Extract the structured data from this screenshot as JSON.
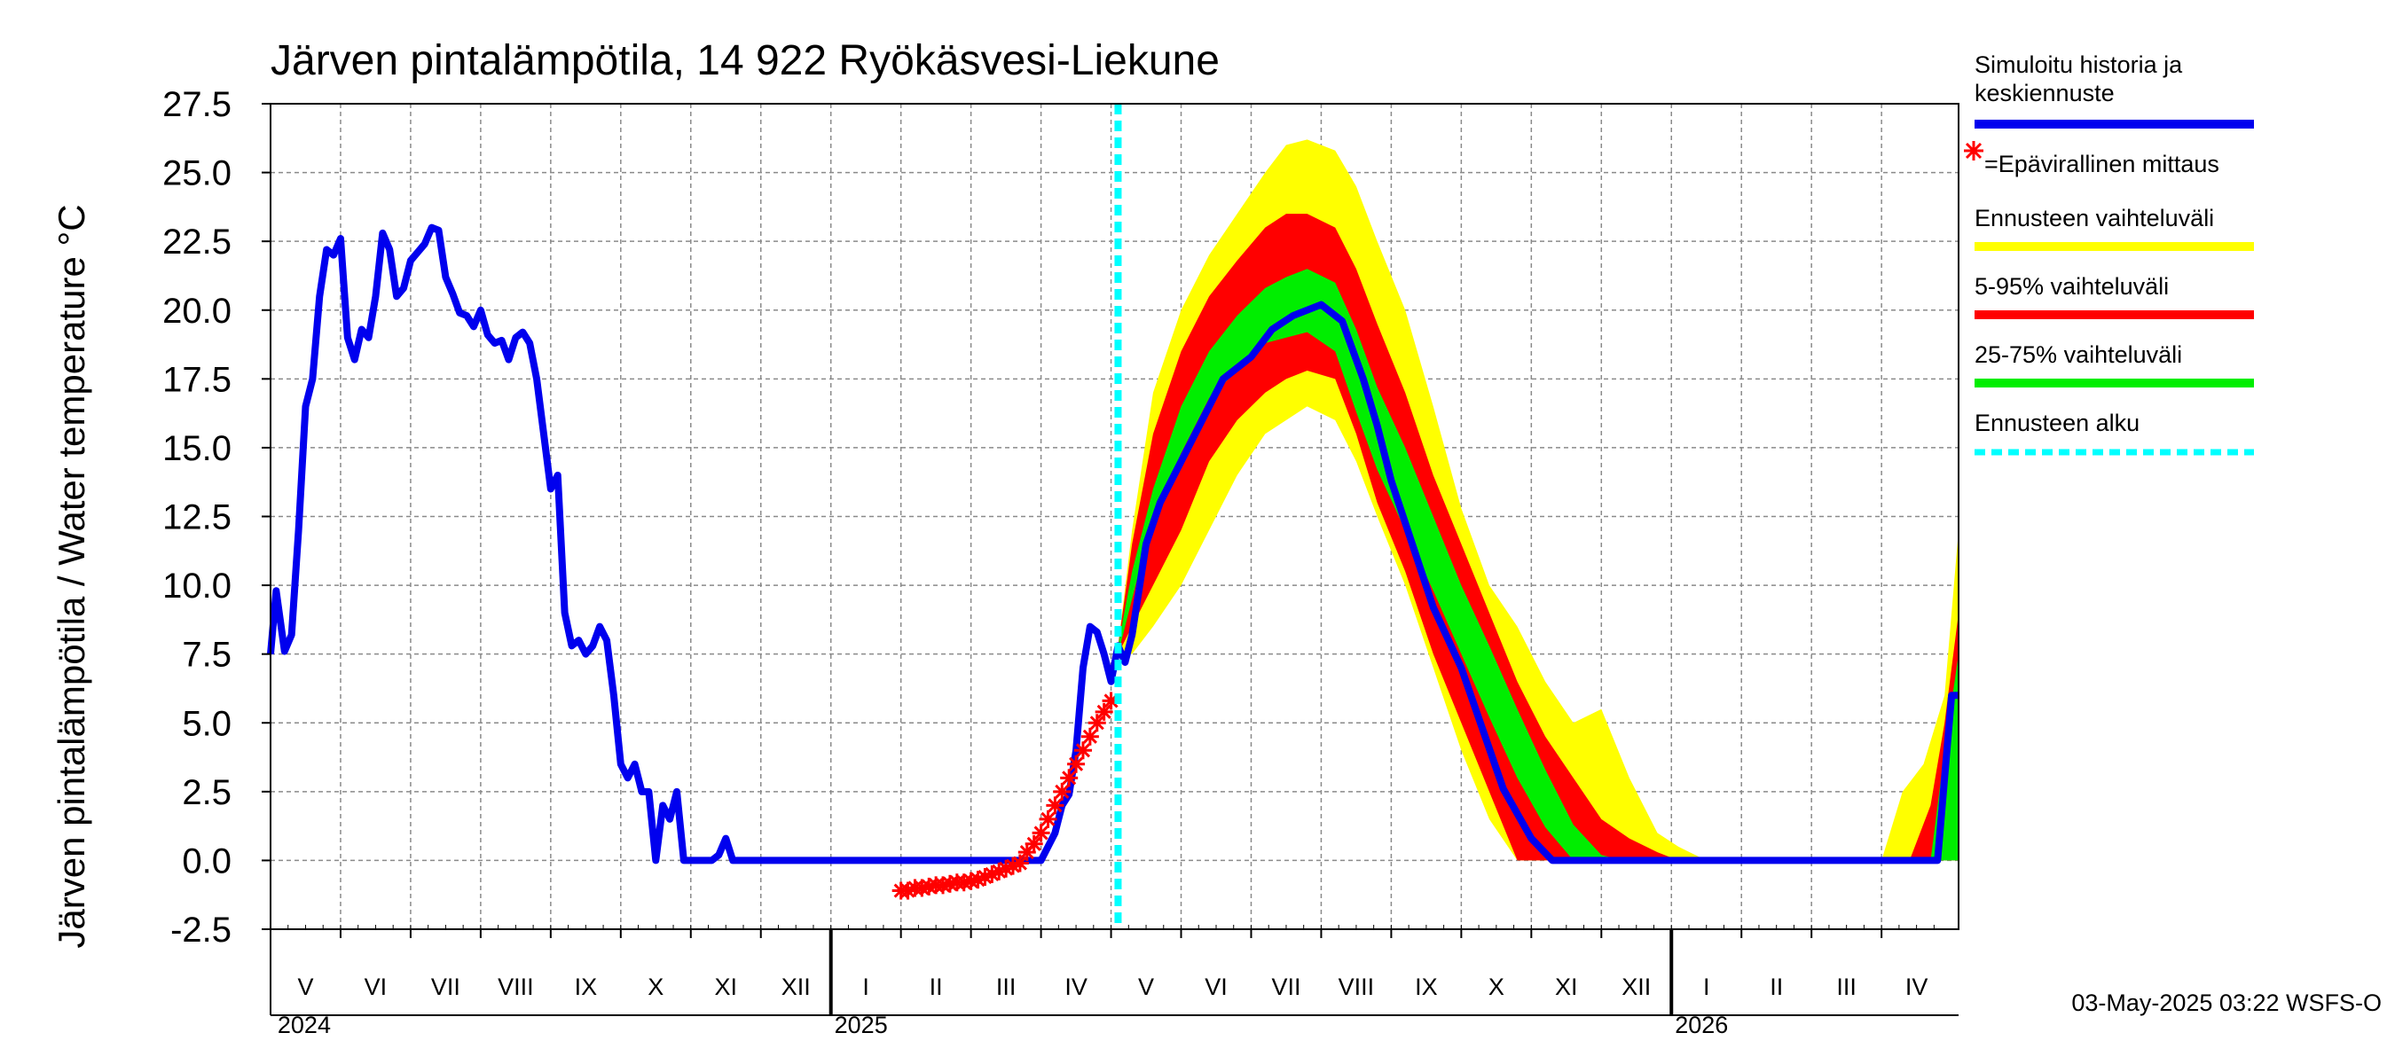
{
  "chart_data": {
    "type": "line",
    "title": "Järven pintalämpötila, 14 922 Ryökäsvesi-Liekune",
    "ylabel": "Järven pintalämpötila / Water temperature °C",
    "xlabel": "",
    "ylim": [
      -2.5,
      27.5
    ],
    "yticks": [
      "-2.5",
      "0.0",
      "2.5",
      "5.0",
      "7.5",
      "10.0",
      "12.5",
      "15.0",
      "17.5",
      "20.0",
      "22.5",
      "25.0",
      "27.5"
    ],
    "ytick_values": [
      -2.5,
      0,
      2.5,
      5,
      7.5,
      10,
      12.5,
      15,
      17.5,
      20,
      22.5,
      25,
      27.5
    ],
    "x_unit": "months since 2024-04-01",
    "xlim": [
      0,
      24.1
    ],
    "forecast_start": 12.1,
    "month_labels": [
      {
        "label": "V",
        "x": 0.5
      },
      {
        "label": "VI",
        "x": 1.5
      },
      {
        "label": "VII",
        "x": 2.5
      },
      {
        "label": "VIII",
        "x": 3.5
      },
      {
        "label": "IX",
        "x": 4.5
      },
      {
        "label": "X",
        "x": 5.5
      },
      {
        "label": "XI",
        "x": 6.5
      },
      {
        "label": "XII",
        "x": 7.5
      },
      {
        "label": "I",
        "x": 8.5
      },
      {
        "label": "II",
        "x": 9.5
      },
      {
        "label": "III",
        "x": 10.5
      },
      {
        "label": "IV",
        "x": 11.5
      },
      {
        "label": "V",
        "x": 12.5
      },
      {
        "label": "VI",
        "x": 13.5
      },
      {
        "label": "VII",
        "x": 14.5
      },
      {
        "label": "VIII",
        "x": 15.5
      },
      {
        "label": "IX",
        "x": 16.5
      },
      {
        "label": "X",
        "x": 17.5
      },
      {
        "label": "XI",
        "x": 18.5
      },
      {
        "label": "XII",
        "x": 19.5
      },
      {
        "label": "I",
        "x": 20.5
      },
      {
        "label": "II",
        "x": 21.5
      },
      {
        "label": "III",
        "x": 22.5
      },
      {
        "label": "IV",
        "x": 23.5
      }
    ],
    "year_labels": [
      {
        "label": "2024",
        "x": 0.1
      },
      {
        "label": "2025",
        "x": 8.05
      },
      {
        "label": "2026",
        "x": 20.05
      }
    ],
    "year_boundaries": [
      8,
      20
    ],
    "series": [
      {
        "name": "Simuloitu historia ja keskiennuste",
        "color": "#0000ee",
        "x": [
          0,
          0.08,
          0.2,
          0.3,
          0.4,
          0.5,
          0.6,
          0.7,
          0.8,
          0.9,
          1.0,
          1.1,
          1.2,
          1.3,
          1.4,
          1.5,
          1.6,
          1.7,
          1.8,
          1.9,
          2.0,
          2.1,
          2.2,
          2.3,
          2.4,
          2.5,
          2.6,
          2.7,
          2.8,
          2.9,
          3.0,
          3.1,
          3.2,
          3.3,
          3.4,
          3.5,
          3.6,
          3.7,
          3.8,
          3.9,
          4.0,
          4.1,
          4.2,
          4.3,
          4.4,
          4.5,
          4.6,
          4.7,
          4.8,
          4.9,
          5.0,
          5.1,
          5.2,
          5.3,
          5.4,
          5.5,
          5.6,
          5.7,
          5.8,
          5.9,
          6.0,
          6.1,
          6.2,
          6.3,
          6.4,
          6.5,
          6.6,
          6.7,
          6.8,
          6.9,
          7.0,
          7.1,
          7.2,
          7.3,
          7.4,
          7.6,
          7.8,
          7.9,
          8.0,
          9.0,
          10.0,
          10.5,
          11.0,
          11.1,
          11.2,
          11.3,
          11.4,
          11.5,
          11.6,
          11.7,
          11.8,
          11.9,
          12.0,
          12.1,
          12.2,
          12.3,
          12.5,
          12.7,
          13.0,
          13.3,
          13.6,
          14.0,
          14.3,
          14.6,
          15.0,
          15.3,
          15.6,
          15.8,
          16.0,
          16.3,
          16.6,
          17.0,
          17.3,
          17.6,
          18.0,
          18.3,
          18.6,
          18.9,
          19.1,
          19.5,
          20.0,
          21.0,
          22.0,
          23.0,
          23.5,
          23.8,
          24.0,
          24.1
        ],
        "y": [
          7.5,
          9.8,
          7.6,
          8.2,
          12.0,
          16.5,
          17.5,
          20.5,
          22.2,
          22.0,
          22.6,
          19.0,
          18.2,
          19.3,
          19.0,
          20.5,
          22.8,
          22.2,
          20.5,
          20.8,
          21.8,
          22.1,
          22.4,
          23.0,
          22.9,
          21.2,
          20.6,
          19.9,
          19.8,
          19.4,
          20.0,
          19.1,
          18.8,
          18.9,
          18.2,
          19.0,
          19.2,
          18.8,
          17.5,
          15.5,
          13.5,
          14.0,
          9.0,
          7.8,
          8.0,
          7.5,
          7.8,
          8.5,
          8.0,
          6.0,
          3.5,
          3.0,
          3.5,
          2.5,
          2.5,
          0.0,
          2.0,
          1.5,
          2.5,
          0.0,
          0.0,
          0.0,
          0.0,
          0.0,
          0.2,
          0.8,
          0.0,
          0.0,
          0.0,
          0.0,
          0.0,
          0.0,
          0.0,
          0.0,
          0.0,
          0.0,
          0.0,
          0.0,
          0.0,
          0.0,
          0.0,
          0.0,
          0.0,
          0.5,
          1.0,
          2.0,
          2.4,
          4.0,
          7.0,
          8.5,
          8.3,
          7.5,
          6.5,
          7.8,
          7.2,
          8.2,
          11.5,
          13.0,
          14.5,
          16.0,
          17.5,
          18.3,
          19.3,
          19.8,
          20.2,
          19.6,
          17.5,
          15.8,
          13.8,
          11.5,
          9.2,
          7.0,
          4.8,
          2.6,
          0.8,
          0.0,
          0.0,
          0.0,
          0.0,
          0.0,
          0.0,
          0.0,
          0.0,
          0.0,
          0.0,
          0.0,
          6.0,
          6.0
        ]
      },
      {
        "name": "=Epävirallinen mittaus",
        "color": "#ff0000",
        "marker": "*",
        "x": [
          9.0,
          9.1,
          9.2,
          9.3,
          9.4,
          9.5,
          9.6,
          9.7,
          9.8,
          9.9,
          10.0,
          10.1,
          10.2,
          10.3,
          10.4,
          10.5,
          10.6,
          10.7,
          10.8,
          10.9,
          11.0,
          11.1,
          11.2,
          11.3,
          11.4,
          11.5,
          11.6,
          11.7,
          11.8,
          11.9,
          12.0
        ],
        "y": [
          -1.1,
          -1.1,
          -1.0,
          -1.0,
          -0.95,
          -0.9,
          -0.9,
          -0.85,
          -0.8,
          -0.8,
          -0.75,
          -0.7,
          -0.6,
          -0.5,
          -0.4,
          -0.3,
          -0.2,
          -0.1,
          0.3,
          0.6,
          1.0,
          1.5,
          2.0,
          2.5,
          3.0,
          3.5,
          4.0,
          4.5,
          5.0,
          5.4,
          5.8
        ]
      }
    ],
    "bands": [
      {
        "name": "Ennusteen vaihteluväli",
        "color": "#ffff00",
        "x": [
          12.1,
          12.3,
          12.6,
          13.0,
          13.4,
          13.8,
          14.2,
          14.5,
          14.8,
          15.2,
          15.5,
          15.8,
          16.2,
          16.6,
          17.0,
          17.4,
          17.8,
          18.2,
          18.6,
          19.0,
          19.4,
          19.8,
          20.1,
          20.5,
          21.0,
          21.5,
          22.0,
          22.5,
          22.9,
          23.0,
          23.3,
          23.6,
          23.9,
          24.1
        ],
        "upper": [
          7.8,
          12.0,
          17.0,
          20.0,
          22.0,
          23.5,
          25.0,
          26.0,
          26.2,
          25.8,
          24.5,
          22.5,
          20.0,
          16.5,
          12.8,
          10.0,
          8.5,
          6.5,
          5.0,
          5.5,
          3.0,
          1.0,
          0.5,
          0.0,
          0.0,
          0.0,
          0.0,
          0.0,
          0.0,
          0.0,
          2.5,
          3.5,
          6.0,
          12.0
        ],
        "lower": [
          7.5,
          7.5,
          8.5,
          10.0,
          12.0,
          14.0,
          15.5,
          16.0,
          16.5,
          16.0,
          14.5,
          12.5,
          10.0,
          7.0,
          4.0,
          1.5,
          0.0,
          0.0,
          0.0,
          0.0,
          0.0,
          0.0,
          0.0,
          0.0,
          0.0,
          0.0,
          0.0,
          0.0,
          0.0,
          0.0,
          0.0,
          0.0,
          0.0,
          0.0
        ]
      },
      {
        "name": "5-95% vaihteluväli",
        "color": "#ff0000",
        "x": [
          12.1,
          12.3,
          12.6,
          13.0,
          13.4,
          13.8,
          14.2,
          14.5,
          14.8,
          15.2,
          15.5,
          15.8,
          16.2,
          16.6,
          17.0,
          17.4,
          17.8,
          18.2,
          18.6,
          19.0,
          19.4,
          19.8,
          20.1,
          20.5,
          21.0,
          21.5,
          22.0,
          22.5,
          23.0,
          23.4,
          23.7,
          23.9,
          24.1
        ],
        "upper": [
          7.8,
          11.5,
          15.5,
          18.5,
          20.5,
          21.8,
          23.0,
          23.5,
          23.5,
          23.0,
          21.5,
          19.5,
          17.0,
          14.0,
          11.5,
          9.0,
          6.5,
          4.5,
          3.0,
          1.5,
          0.8,
          0.3,
          0.0,
          0.0,
          0.0,
          0.0,
          0.0,
          0.0,
          0.0,
          0.0,
          2.0,
          5.0,
          9.0
        ],
        "lower": [
          7.5,
          8.5,
          10.0,
          12.0,
          14.5,
          16.0,
          17.0,
          17.5,
          17.8,
          17.5,
          15.5,
          13.0,
          10.5,
          7.5,
          5.0,
          2.5,
          0.0,
          0.0,
          0.0,
          0.0,
          0.0,
          0.0,
          0.0,
          0.0,
          0.0,
          0.0,
          0.0,
          0.0,
          0.0,
          0.0,
          0.0,
          0.0,
          0.0
        ]
      },
      {
        "name": "25-75% vaihteluväli",
        "color": "#00ee00",
        "x": [
          12.1,
          12.3,
          12.6,
          13.0,
          13.4,
          13.8,
          14.2,
          14.5,
          14.8,
          15.2,
          15.5,
          15.8,
          16.2,
          16.6,
          17.0,
          17.4,
          17.8,
          18.2,
          18.6,
          19.0,
          19.3,
          19.6,
          20.0,
          21.0,
          22.0,
          23.0,
          23.7,
          23.9,
          24.1
        ],
        "upper": [
          7.8,
          10.5,
          13.5,
          16.5,
          18.5,
          19.8,
          20.8,
          21.2,
          21.5,
          21.0,
          19.3,
          17.2,
          15.0,
          12.5,
          10.0,
          7.8,
          5.5,
          3.3,
          1.3,
          0.2,
          0.0,
          0.0,
          0.0,
          0.0,
          0.0,
          0.0,
          0.0,
          4.0,
          7.5
        ],
        "lower": [
          7.5,
          9.5,
          12.5,
          14.8,
          16.8,
          17.8,
          18.8,
          19.0,
          19.2,
          18.5,
          16.3,
          14.2,
          12.0,
          9.8,
          7.5,
          5.2,
          3.0,
          1.2,
          0.0,
          0.0,
          0.0,
          0.0,
          0.0,
          0.0,
          0.0,
          0.0,
          0.0,
          0.0,
          0.0
        ]
      }
    ],
    "legend": {
      "placement": "right",
      "entries": [
        {
          "label": "Simuloitu historia ja keskiennuste",
          "color": "#0000ee",
          "style": "solid"
        },
        {
          "label": "=Epävirallinen mittaus",
          "color": "#ff0000",
          "style": "marker"
        },
        {
          "label": "Ennusteen vaihteluväli",
          "color": "#ffff00",
          "style": "solid"
        },
        {
          "label": "5-95% vaihteluväli",
          "color": "#ff0000",
          "style": "solid"
        },
        {
          "label": "25-75% vaihteluväli",
          "color": "#00ee00",
          "style": "solid"
        },
        {
          "label": "Ennusteen alku",
          "color": "#00ffff",
          "style": "dashed"
        }
      ]
    },
    "footer": "03-May-2025 03:22 WSFS-O"
  }
}
